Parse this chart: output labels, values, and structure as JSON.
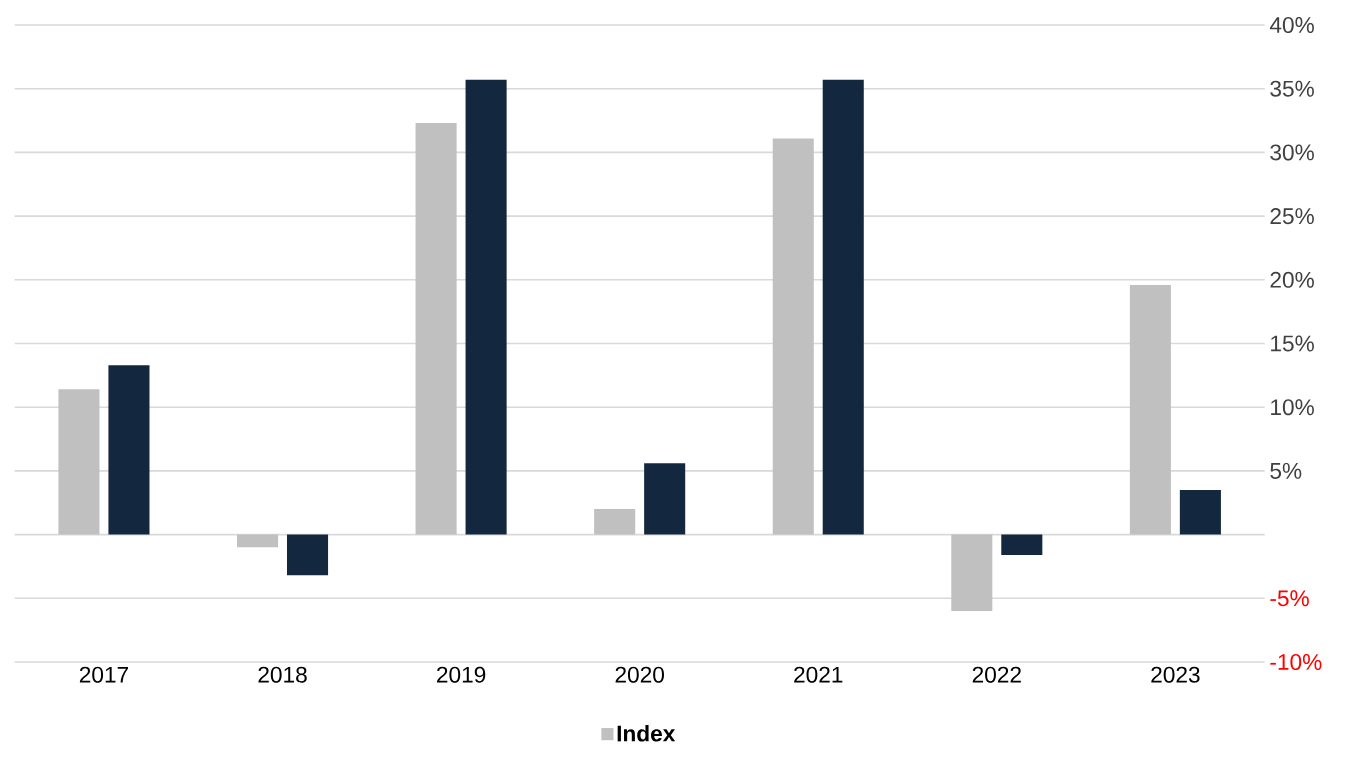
{
  "chart_data": {
    "type": "bar",
    "categories": [
      "2017",
      "2018",
      "2019",
      "2020",
      "2021",
      "2022",
      "2023"
    ],
    "series": [
      {
        "name": "Index",
        "color": "#c0c0c0",
        "values": [
          11.4,
          -1.0,
          32.3,
          2.0,
          31.1,
          -6.0,
          19.6
        ]
      },
      {
        "color": "#13283f",
        "values": [
          13.3,
          -3.2,
          35.7,
          5.6,
          35.7,
          -1.6,
          3.5
        ]
      }
    ],
    "ylim": [
      -10,
      40
    ],
    "yticks": [
      {
        "value": -10,
        "label": "-10%"
      },
      {
        "value": -5,
        "label": "-5%"
      },
      {
        "value": 0,
        "label": null
      },
      {
        "value": 5,
        "label": "5%"
      },
      {
        "value": 10,
        "label": "10%"
      },
      {
        "value": 15,
        "label": "15%"
      },
      {
        "value": 20,
        "label": "20%"
      },
      {
        "value": 25,
        "label": "25%"
      },
      {
        "value": 30,
        "label": "30%"
      },
      {
        "value": 35,
        "label": "35%"
      },
      {
        "value": 40,
        "label": "40%"
      }
    ],
    "grid": "y",
    "legend": "bottom"
  }
}
